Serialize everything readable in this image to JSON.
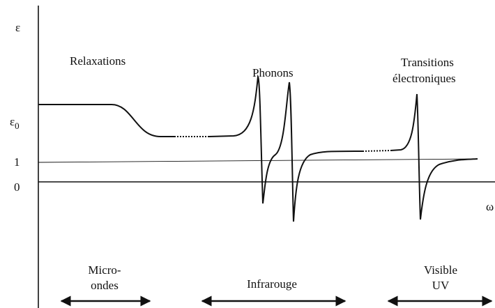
{
  "axes": {
    "y_label": "ε",
    "eps0_base": "ε",
    "eps0_sub": "0",
    "level_one": "1",
    "level_zero": "0",
    "x_label": "ω"
  },
  "regions": [
    {
      "lines": [
        "Relaxations"
      ]
    },
    {
      "lines": [
        "Phonons"
      ]
    },
    {
      "lines": [
        "Transitions",
        "électroniques"
      ]
    }
  ],
  "bands": [
    {
      "lines": [
        "Micro-",
        "ondes"
      ]
    },
    {
      "lines": [
        "Infrarouge"
      ]
    },
    {
      "lines": [
        "Visible",
        "UV"
      ]
    }
  ]
}
